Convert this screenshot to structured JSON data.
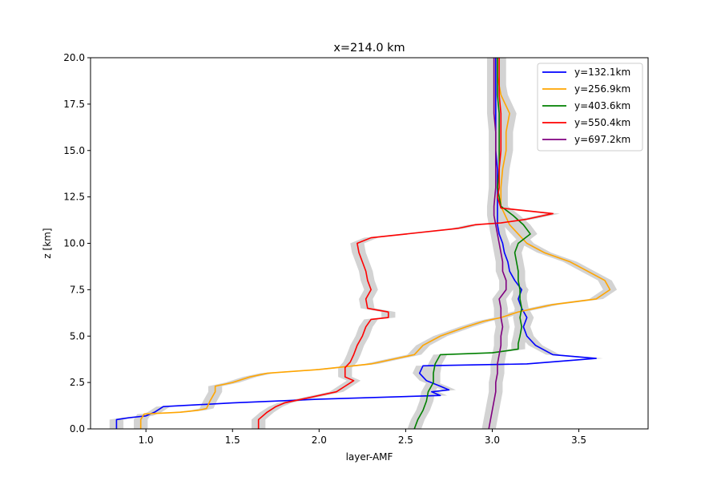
{
  "chart_data": {
    "type": "line",
    "title": "x=214.0 km",
    "xlabel": "layer-AMF",
    "ylabel": "z [km]",
    "xlim": [
      0.68,
      3.9
    ],
    "ylim": [
      0,
      20
    ],
    "xticks": [
      1.0,
      1.5,
      2.0,
      2.5,
      3.0,
      3.5
    ],
    "xtick_labels": [
      "1.0",
      "1.5",
      "2.0",
      "2.5",
      "3.0",
      "3.5"
    ],
    "yticks": [
      0,
      2.5,
      5.0,
      7.5,
      10.0,
      12.5,
      15.0,
      17.5,
      20.0
    ],
    "ytick_labels": [
      "0.0",
      "2.5",
      "5.0",
      "7.5",
      "10.0",
      "12.5",
      "15.0",
      "17.5",
      "20.0"
    ],
    "grid": false,
    "legend_position": "top-right",
    "uncertainty_band_color": "#d3d3d3",
    "series": [
      {
        "name": "y=132.1km",
        "color": "#0000ff",
        "points": [
          [
            0.83,
            0
          ],
          [
            0.83,
            0.5
          ],
          [
            0.9,
            0.6
          ],
          [
            1.0,
            0.7
          ],
          [
            1.05,
            0.9
          ],
          [
            1.1,
            1.2
          ],
          [
            1.5,
            1.4
          ],
          [
            2.0,
            1.6
          ],
          [
            2.7,
            1.8
          ],
          [
            2.65,
            2.0
          ],
          [
            2.75,
            2.1
          ],
          [
            2.7,
            2.3
          ],
          [
            2.62,
            2.6
          ],
          [
            2.58,
            3.0
          ],
          [
            2.6,
            3.4
          ],
          [
            3.2,
            3.5
          ],
          [
            3.6,
            3.8
          ],
          [
            3.35,
            4.0
          ],
          [
            3.25,
            4.5
          ],
          [
            3.2,
            5.0
          ],
          [
            3.18,
            5.5
          ],
          [
            3.2,
            6.0
          ],
          [
            3.17,
            6.5
          ],
          [
            3.15,
            7.0
          ],
          [
            3.17,
            7.5
          ],
          [
            3.13,
            8.0
          ],
          [
            3.1,
            8.5
          ],
          [
            3.09,
            9.0
          ],
          [
            3.07,
            9.5
          ],
          [
            3.06,
            10.0
          ],
          [
            3.04,
            10.5
          ],
          [
            3.03,
            11.0
          ],
          [
            3.03,
            11.5
          ],
          [
            3.03,
            12.0
          ],
          [
            3.03,
            13.0
          ],
          [
            3.03,
            14.0
          ],
          [
            3.02,
            15.0
          ],
          [
            3.02,
            16.0
          ],
          [
            3.02,
            17.0
          ],
          [
            3.02,
            18.0
          ],
          [
            3.02,
            19.0
          ],
          [
            3.02,
            20.0
          ]
        ]
      },
      {
        "name": "y=256.9km",
        "color": "#ffa500",
        "points": [
          [
            0.97,
            0
          ],
          [
            0.97,
            0.5
          ],
          [
            0.99,
            0.8
          ],
          [
            1.2,
            0.9
          ],
          [
            1.3,
            1.0
          ],
          [
            1.35,
            1.1
          ],
          [
            1.37,
            1.5
          ],
          [
            1.4,
            2.0
          ],
          [
            1.4,
            2.3
          ],
          [
            1.5,
            2.5
          ],
          [
            1.6,
            2.8
          ],
          [
            1.7,
            3.0
          ],
          [
            2.0,
            3.2
          ],
          [
            2.3,
            3.5
          ],
          [
            2.45,
            3.8
          ],
          [
            2.55,
            4.0
          ],
          [
            2.6,
            4.5
          ],
          [
            2.7,
            5.0
          ],
          [
            2.85,
            5.5
          ],
          [
            2.95,
            5.8
          ],
          [
            3.05,
            6.0
          ],
          [
            3.15,
            6.3
          ],
          [
            3.35,
            6.7
          ],
          [
            3.6,
            7.0
          ],
          [
            3.68,
            7.5
          ],
          [
            3.65,
            8.0
          ],
          [
            3.55,
            8.5
          ],
          [
            3.45,
            9.0
          ],
          [
            3.3,
            9.5
          ],
          [
            3.2,
            10.0
          ],
          [
            3.15,
            10.5
          ],
          [
            3.1,
            11.0
          ],
          [
            3.05,
            12.0
          ],
          [
            3.05,
            13.0
          ],
          [
            3.06,
            14.0
          ],
          [
            3.08,
            15.0
          ],
          [
            3.08,
            16.0
          ],
          [
            3.1,
            17.0
          ],
          [
            3.05,
            18.0
          ],
          [
            3.03,
            19.0
          ],
          [
            3.03,
            20.0
          ]
        ]
      },
      {
        "name": "y=403.6km",
        "color": "#008000",
        "points": [
          [
            2.55,
            0
          ],
          [
            2.57,
            0.5
          ],
          [
            2.6,
            1.0
          ],
          [
            2.62,
            1.5
          ],
          [
            2.63,
            2.0
          ],
          [
            2.66,
            2.5
          ],
          [
            2.66,
            3.0
          ],
          [
            2.67,
            3.5
          ],
          [
            2.7,
            4.0
          ],
          [
            3.0,
            4.1
          ],
          [
            3.15,
            4.3
          ],
          [
            3.15,
            4.6
          ],
          [
            3.16,
            5.0
          ],
          [
            3.17,
            5.5
          ],
          [
            3.16,
            6.0
          ],
          [
            3.17,
            6.5
          ],
          [
            3.16,
            7.0
          ],
          [
            3.16,
            7.5
          ],
          [
            3.15,
            8.0
          ],
          [
            3.15,
            8.5
          ],
          [
            3.14,
            9.0
          ],
          [
            3.13,
            9.5
          ],
          [
            3.15,
            10.0
          ],
          [
            3.22,
            10.5
          ],
          [
            3.18,
            11.0
          ],
          [
            3.12,
            11.5
          ],
          [
            3.05,
            12.0
          ],
          [
            3.03,
            13.0
          ],
          [
            3.04,
            14.0
          ],
          [
            3.04,
            15.0
          ],
          [
            3.04,
            16.0
          ],
          [
            3.04,
            17.0
          ],
          [
            3.03,
            18.0
          ],
          [
            3.03,
            19.0
          ],
          [
            3.03,
            20.0
          ]
        ]
      },
      {
        "name": "y=550.4km",
        "color": "#ff0000",
        "points": [
          [
            1.65,
            0
          ],
          [
            1.65,
            0.5
          ],
          [
            1.7,
            0.9
          ],
          [
            1.75,
            1.2
          ],
          [
            1.8,
            1.4
          ],
          [
            1.9,
            1.6
          ],
          [
            2.0,
            1.8
          ],
          [
            2.1,
            2.0
          ],
          [
            2.15,
            2.3
          ],
          [
            2.2,
            2.6
          ],
          [
            2.15,
            2.8
          ],
          [
            2.15,
            3.0
          ],
          [
            2.15,
            3.3
          ],
          [
            2.18,
            3.6
          ],
          [
            2.2,
            4.0
          ],
          [
            2.22,
            4.5
          ],
          [
            2.25,
            5.0
          ],
          [
            2.27,
            5.5
          ],
          [
            2.3,
            5.9
          ],
          [
            2.4,
            6.0
          ],
          [
            2.4,
            6.3
          ],
          [
            2.28,
            6.5
          ],
          [
            2.27,
            7.0
          ],
          [
            2.3,
            7.5
          ],
          [
            2.28,
            8.0
          ],
          [
            2.27,
            8.5
          ],
          [
            2.25,
            9.0
          ],
          [
            2.23,
            9.5
          ],
          [
            2.22,
            10.0
          ],
          [
            2.3,
            10.3
          ],
          [
            2.8,
            10.8
          ],
          [
            2.9,
            11.0
          ],
          [
            3.05,
            11.1
          ],
          [
            3.2,
            11.3
          ],
          [
            3.35,
            11.6
          ],
          [
            3.05,
            11.9
          ],
          [
            3.03,
            12.5
          ],
          [
            3.04,
            13.0
          ],
          [
            3.04,
            14.0
          ],
          [
            3.05,
            15.0
          ],
          [
            3.05,
            16.0
          ],
          [
            3.05,
            17.0
          ],
          [
            3.04,
            18.0
          ],
          [
            3.04,
            19.0
          ],
          [
            3.04,
            20.0
          ]
        ]
      },
      {
        "name": "y=697.2km",
        "color": "#800080",
        "points": [
          [
            2.98,
            0
          ],
          [
            2.99,
            0.5
          ],
          [
            3.0,
            1.0
          ],
          [
            3.01,
            1.5
          ],
          [
            3.02,
            2.0
          ],
          [
            3.02,
            2.5
          ],
          [
            3.03,
            3.0
          ],
          [
            3.03,
            3.5
          ],
          [
            3.04,
            4.0
          ],
          [
            3.05,
            4.5
          ],
          [
            3.05,
            5.0
          ],
          [
            3.06,
            5.5
          ],
          [
            3.05,
            6.0
          ],
          [
            3.05,
            6.5
          ],
          [
            3.04,
            7.0
          ],
          [
            3.08,
            7.5
          ],
          [
            3.08,
            8.0
          ],
          [
            3.06,
            8.5
          ],
          [
            3.06,
            9.0
          ],
          [
            3.05,
            9.5
          ],
          [
            3.04,
            10.0
          ],
          [
            3.03,
            10.5
          ],
          [
            3.02,
            11.0
          ],
          [
            3.01,
            11.5
          ],
          [
            3.01,
            12.0
          ],
          [
            3.02,
            13.0
          ],
          [
            3.02,
            14.0
          ],
          [
            3.02,
            15.0
          ],
          [
            3.02,
            16.0
          ],
          [
            3.01,
            17.0
          ],
          [
            3.01,
            18.0
          ],
          [
            3.01,
            19.0
          ],
          [
            3.01,
            20.0
          ]
        ]
      }
    ]
  }
}
